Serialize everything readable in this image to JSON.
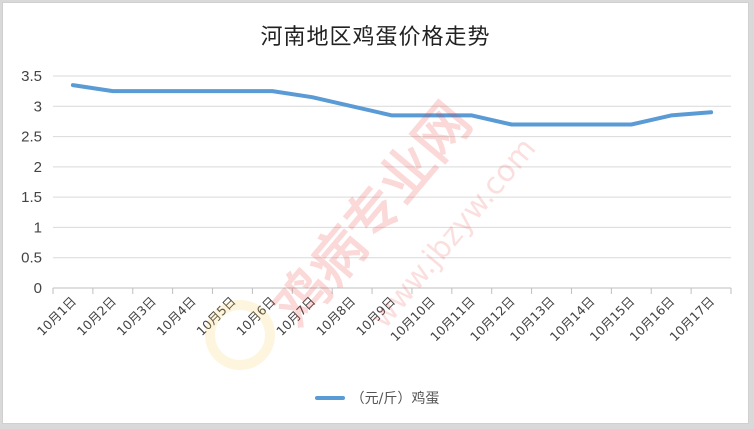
{
  "chart_data": {
    "type": "line",
    "title": "河南地区鸡蛋价格走势",
    "xlabel": "",
    "ylabel": "",
    "categories": [
      "10月1日",
      "10月2日",
      "10月3日",
      "10月4日",
      "10月5日",
      "10月6日",
      "10月7日",
      "10月8日",
      "10月9日",
      "10月10日",
      "10月11日",
      "10月12日",
      "10月13日",
      "10月14日",
      "10月15日",
      "10月16日",
      "10月17日"
    ],
    "series": [
      {
        "name": "（元/斤）鸡蛋",
        "color": "#5b9bd5",
        "values": [
          3.35,
          3.25,
          3.25,
          3.25,
          3.25,
          3.25,
          3.15,
          3.0,
          2.85,
          2.85,
          2.85,
          2.7,
          2.7,
          2.7,
          2.7,
          2.85,
          2.9
        ]
      }
    ],
    "ylim": [
      0,
      3.5
    ],
    "yticks": [
      "0",
      "0.5",
      "1",
      "1.5",
      "2",
      "2.5",
      "3",
      "3.5"
    ],
    "grid": true,
    "legend_position": "bottom"
  },
  "title": "河南地区鸡蛋价格走势",
  "legend": {
    "label": "（元/斤）鸡蛋",
    "color": "#5b9bd5"
  },
  "watermark": {
    "text1": "鸡病专业网",
    "text2": "www.jbzyw.com"
  }
}
